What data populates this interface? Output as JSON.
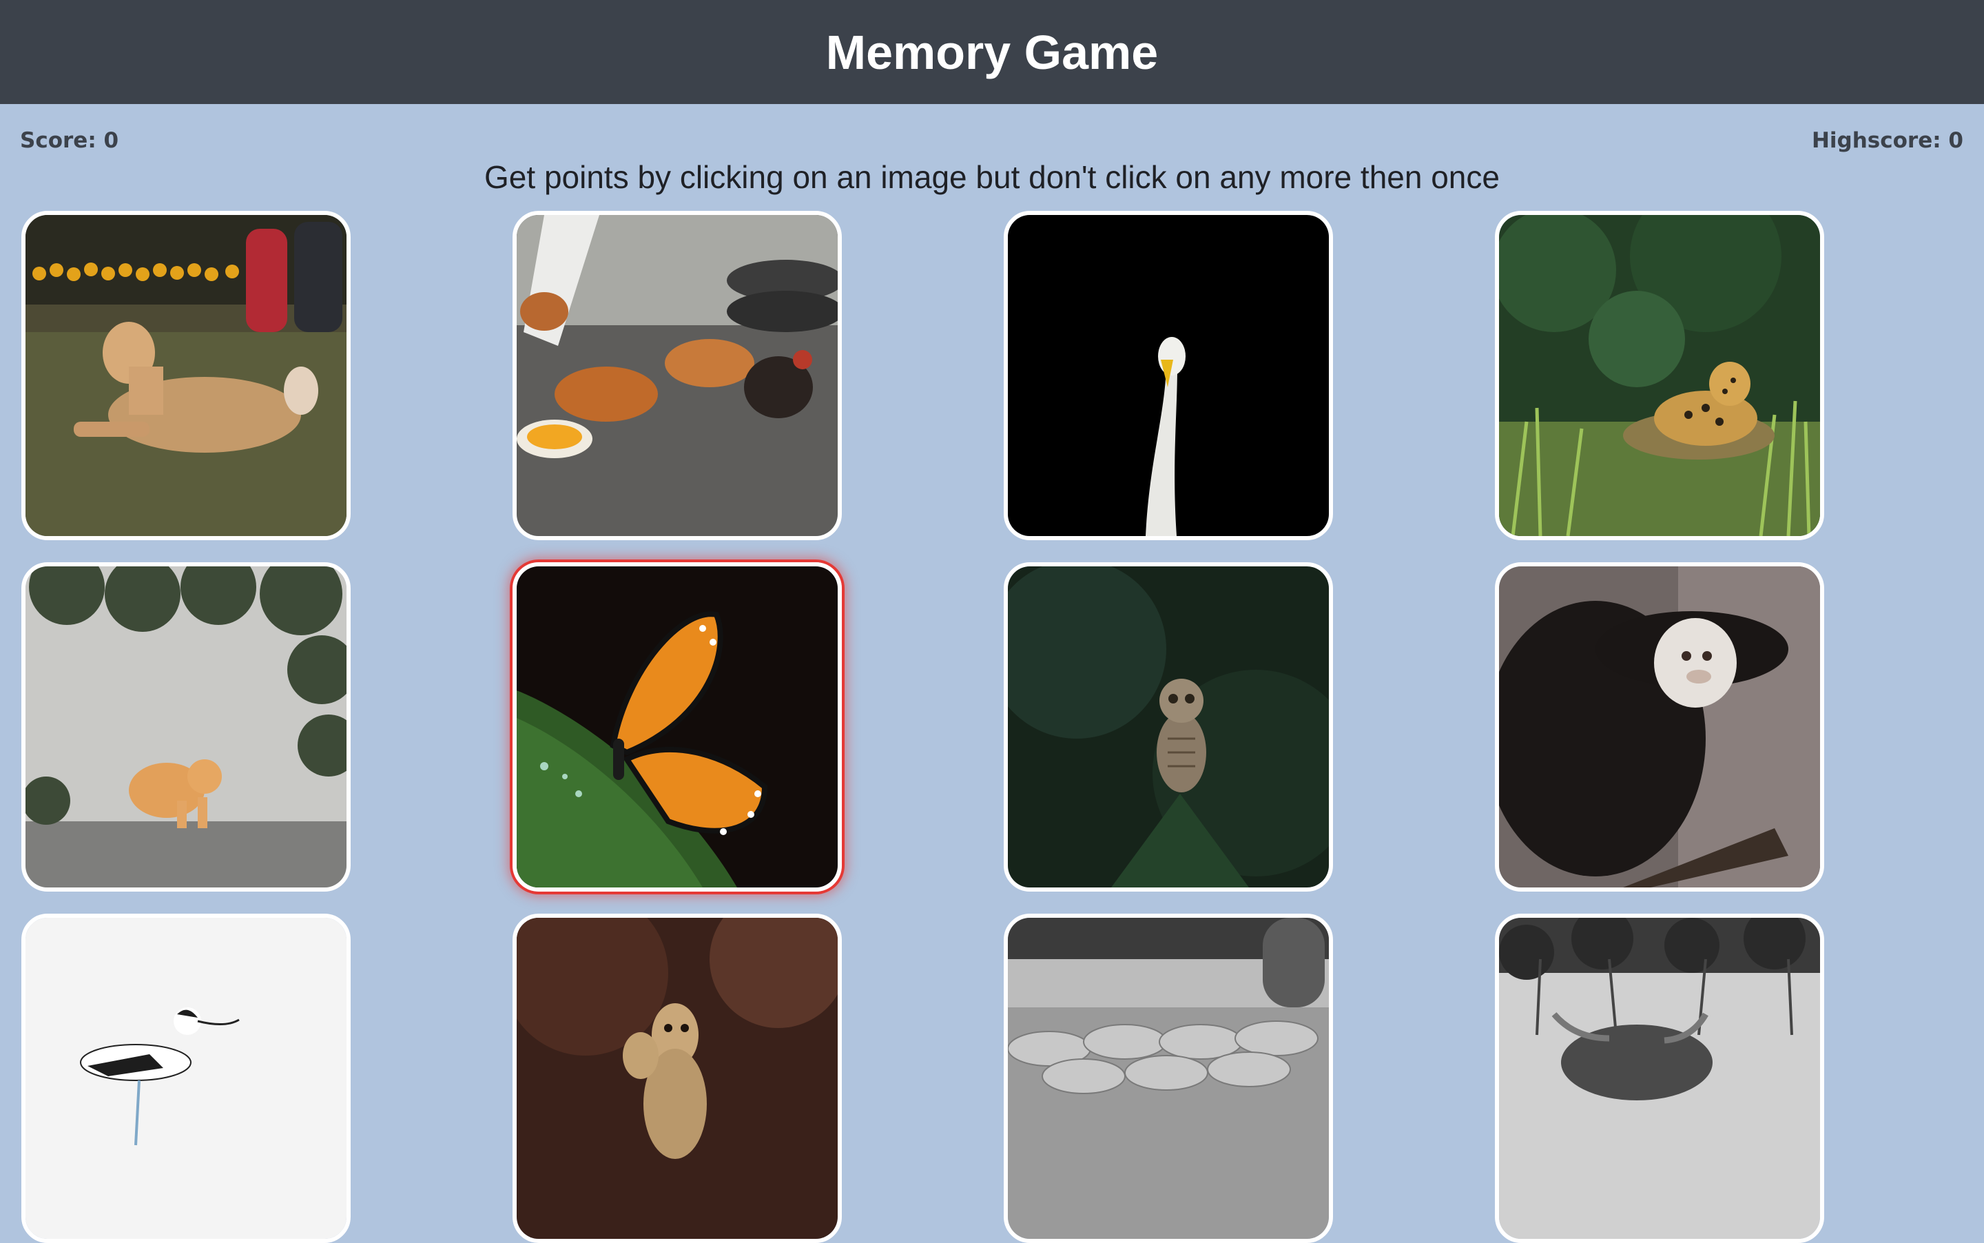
{
  "header": {
    "title": "Memory Game"
  },
  "scoreboard": {
    "score_label": "Score: 0",
    "highscore_label": "Highscore: 0"
  },
  "instructions": "Get points by clicking on an image but don't click on any more then once",
  "colors": {
    "background": "#b0c4de",
    "header": "#3c424b",
    "card_border": "#ffffff",
    "hover_glow": "#e53935"
  },
  "cards": [
    {
      "subject": "dog"
    },
    {
      "subject": "chickens"
    },
    {
      "subject": "swan"
    },
    {
      "subject": "jaguar"
    },
    {
      "subject": "cat"
    },
    {
      "subject": "butterfly",
      "highlighted": true
    },
    {
      "subject": "owl"
    },
    {
      "subject": "marmoset"
    },
    {
      "subject": "avocet"
    },
    {
      "subject": "meerkat"
    },
    {
      "subject": "sheep"
    },
    {
      "subject": "highland-cow"
    }
  ]
}
